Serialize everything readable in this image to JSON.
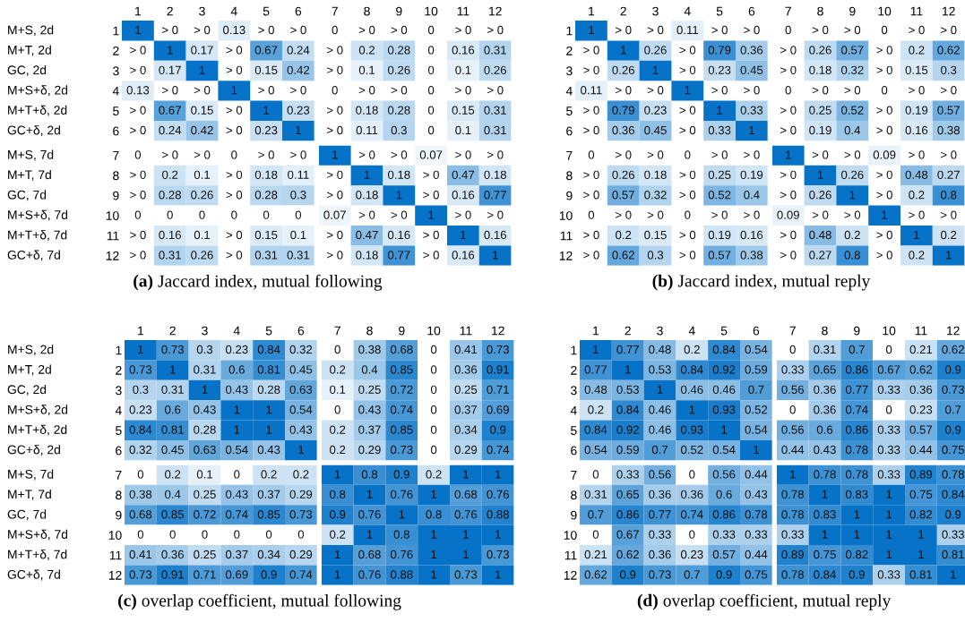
{
  "chart_data": [
    {
      "type": "heatmap",
      "data_labels": true,
      "title": "(a) Jaccard index, mutual following",
      "categories": [
        "1",
        "2",
        "3",
        "4",
        "5",
        "6"
      ],
      "y_categories": [
        "1",
        "2",
        "3",
        "4",
        "5",
        "6"
      ],
      "y2_categories": [
        "M+S, 2d",
        "M+T, 2d",
        "GC, 2d",
        "M+S+δ, 2d",
        "M+T+δ, 2d",
        "GC+δ, 2d"
      ],
      "cells": [
        [
          1,
          null,
          null,
          0.13,
          null,
          null
        ],
        [
          null,
          1,
          0.17,
          null,
          0.67,
          0.24
        ],
        [
          null,
          0.17,
          1,
          null,
          0.15,
          0.42
        ],
        [
          0.13,
          null,
          null,
          1,
          null,
          null
        ],
        [
          null,
          0.67,
          0.15,
          null,
          1,
          0.23
        ],
        [
          null,
          0.24,
          0.42,
          null,
          0.23,
          1
        ]
      ],
      "cell_labels": [
        [
          "1",
          "> 0",
          "> 0",
          "0.13",
          "> 0",
          "> 0"
        ],
        [
          "> 0",
          "1",
          "0.17",
          "> 0",
          "0.67",
          "0.24"
        ],
        [
          "> 0",
          "0.17",
          "1",
          "> 0",
          "0.15",
          "0.42"
        ],
        [
          "0.13",
          "> 0",
          "> 0",
          "1",
          "> 0",
          "> 0"
        ],
        [
          "> 0",
          "0.67",
          "0.15",
          "> 0",
          "1",
          "0.23"
        ],
        [
          "> 0",
          "0.24",
          "0.42",
          "> 0",
          "0.23",
          "1"
        ]
      ]
    },
    {
      "type": "heatmap",
      "data_labels": true,
      "categories": [
        "7",
        "8",
        "9",
        "10",
        "11",
        "12"
      ],
      "y_categories": [
        "1",
        "2",
        "3",
        "4",
        "5",
        "6"
      ],
      "tick_labels": "x",
      "cells": [
        [
          0,
          null,
          null,
          0,
          null,
          null
        ],
        [
          null,
          0.2,
          0.28,
          0,
          0.16,
          0.31
        ],
        [
          null,
          0.1,
          0.26,
          0,
          0.1,
          0.26
        ],
        [
          0,
          null,
          null,
          0,
          null,
          null
        ],
        [
          null,
          0.18,
          0.28,
          0,
          0.15,
          0.31
        ],
        [
          null,
          0.11,
          0.3,
          0,
          0.1,
          0.31
        ]
      ],
      "cell_labels": [
        [
          "0",
          "> 0",
          "> 0",
          "0",
          "> 0",
          "> 0"
        ],
        [
          "> 0",
          "0.2",
          "0.28",
          "0",
          "0.16",
          "0.31"
        ],
        [
          "> 0",
          "0.1",
          "0.26",
          "0",
          "0.1",
          "0.26"
        ],
        [
          "0",
          "> 0",
          "> 0",
          "0",
          "> 0",
          "> 0"
        ],
        [
          "> 0",
          "0.18",
          "0.28",
          "0",
          "0.15",
          "0.31"
        ],
        [
          "> 0",
          "0.11",
          "0.3",
          "0",
          "0.1",
          "0.31"
        ]
      ]
    },
    {
      "type": "heatmap",
      "data_labels": true,
      "categories": [
        "1",
        "2",
        "3",
        "4",
        "5",
        "6"
      ],
      "y_categories": [
        "7",
        "8",
        "9",
        "10",
        "11",
        "12"
      ],
      "y2_categories": [
        "M+S, 7d",
        "M+T, 7d",
        "GC, 7d",
        "M+S+δ, 7d",
        "M+T+δ, 7d",
        "GC+δ, 7d"
      ],
      "tick_labels": "y",
      "cells": [
        [
          0,
          null,
          null,
          0,
          null,
          null
        ],
        [
          null,
          0.2,
          0.1,
          null,
          0.18,
          0.11
        ],
        [
          null,
          0.28,
          0.26,
          null,
          0.28,
          0.3
        ],
        [
          0,
          0,
          0,
          0,
          0,
          0
        ],
        [
          null,
          0.16,
          0.1,
          null,
          0.15,
          0.1
        ],
        [
          null,
          0.31,
          0.26,
          null,
          0.31,
          0.31
        ]
      ],
      "cell_labels": [
        [
          "0",
          "> 0",
          "> 0",
          "0",
          "> 0",
          "> 0"
        ],
        [
          "> 0",
          "0.2",
          "0.1",
          "> 0",
          "0.18",
          "0.11"
        ],
        [
          "> 0",
          "0.28",
          "0.26",
          "> 0",
          "0.28",
          "0.3"
        ],
        [
          "0",
          "0",
          "0",
          "0",
          "0",
          "0"
        ],
        [
          "> 0",
          "0.16",
          "0.1",
          "> 0",
          "0.15",
          "0.1"
        ],
        [
          "> 0",
          "0.31",
          "0.26",
          "> 0",
          "0.31",
          "0.31"
        ]
      ]
    },
    {
      "type": "heatmap",
      "data_labels": true,
      "categories": [
        "7",
        "8",
        "9",
        "10",
        "11",
        "12"
      ],
      "y_categories": [
        "7",
        "8",
        "9",
        "10",
        "11",
        "12"
      ],
      "tick_labels": false,
      "cells": [
        [
          1,
          null,
          null,
          0.07,
          null,
          null
        ],
        [
          null,
          1,
          0.18,
          null,
          0.47,
          0.18
        ],
        [
          null,
          0.18,
          1,
          null,
          0.16,
          0.77
        ],
        [
          0.07,
          null,
          null,
          1,
          null,
          null
        ],
        [
          null,
          0.47,
          0.16,
          null,
          1,
          0.16
        ],
        [
          null,
          0.18,
          0.77,
          null,
          0.16,
          1
        ]
      ],
      "cell_labels": [
        [
          "1",
          "> 0",
          "> 0",
          "0.07",
          "> 0",
          "> 0"
        ],
        [
          "> 0",
          "1",
          "0.18",
          "> 0",
          "0.47",
          "0.18"
        ],
        [
          "> 0",
          "0.18",
          "1",
          "> 0",
          "0.16",
          "0.77"
        ],
        [
          "0.07",
          "> 0",
          "> 0",
          "1",
          "> 0",
          "> 0"
        ],
        [
          "> 0",
          "0.47",
          "0.16",
          "> 0",
          "1",
          "0.16"
        ],
        [
          "> 0",
          "0.18",
          "0.77",
          "> 0",
          "0.16",
          "1"
        ]
      ]
    },
    {
      "type": "heatmap",
      "data_labels": true,
      "title": "(b) Jaccard index, mutual reply",
      "categories": [
        "1",
        "2",
        "3",
        "4",
        "5",
        "6"
      ],
      "y_categories": [
        "1",
        "2",
        "3",
        "4",
        "5",
        "6"
      ],
      "cells": [
        [
          1,
          null,
          null,
          0.11,
          null,
          null
        ],
        [
          null,
          1,
          0.26,
          null,
          0.79,
          0.36
        ],
        [
          null,
          0.26,
          1,
          null,
          0.23,
          0.45
        ],
        [
          0.11,
          null,
          null,
          1,
          null,
          null
        ],
        [
          null,
          0.79,
          0.23,
          null,
          1,
          0.33
        ],
        [
          null,
          0.36,
          0.45,
          null,
          0.33,
          1
        ]
      ],
      "cell_labels": [
        [
          "1",
          "> 0",
          "> 0",
          "0.11",
          "> 0",
          "> 0"
        ],
        [
          "> 0",
          "1",
          "0.26",
          "> 0",
          "0.79",
          "0.36"
        ],
        [
          "> 0",
          "0.26",
          "1",
          "> 0",
          "0.23",
          "0.45"
        ],
        [
          "0.11",
          "> 0",
          "> 0",
          "1",
          "> 0",
          "> 0"
        ],
        [
          "> 0",
          "0.79",
          "0.23",
          "> 0",
          "1",
          "0.33"
        ],
        [
          "> 0",
          "0.36",
          "0.45",
          "> 0",
          "0.33",
          "1"
        ]
      ]
    },
    {
      "type": "heatmap",
      "data_labels": true,
      "categories": [
        "7",
        "8",
        "9",
        "10",
        "11",
        "12"
      ],
      "y_categories": [
        "1",
        "2",
        "3",
        "4",
        "5",
        "6"
      ],
      "tick_labels": "x",
      "cells": [
        [
          0,
          null,
          null,
          0,
          null,
          null
        ],
        [
          null,
          0.26,
          0.57,
          null,
          0.2,
          0.62
        ],
        [
          null,
          0.18,
          0.32,
          null,
          0.15,
          0.3
        ],
        [
          0,
          null,
          null,
          0,
          null,
          null
        ],
        [
          null,
          0.25,
          0.52,
          null,
          0.19,
          0.57
        ],
        [
          null,
          0.19,
          0.4,
          null,
          0.16,
          0.38
        ]
      ],
      "cell_labels": [
        [
          "0",
          "> 0",
          "> 0",
          "0",
          "> 0",
          "> 0"
        ],
        [
          "> 0",
          "0.26",
          "0.57",
          "> 0",
          "0.2",
          "0.62"
        ],
        [
          "> 0",
          "0.18",
          "0.32",
          "> 0",
          "0.15",
          "0.3"
        ],
        [
          "0",
          "> 0",
          "> 0",
          "0",
          "> 0",
          "> 0"
        ],
        [
          "> 0",
          "0.25",
          "0.52",
          "> 0",
          "0.19",
          "0.57"
        ],
        [
          "> 0",
          "0.19",
          "0.4",
          "> 0",
          "0.16",
          "0.38"
        ]
      ]
    },
    {
      "type": "heatmap",
      "data_labels": true,
      "categories": [
        "1",
        "2",
        "3",
        "4",
        "5",
        "6"
      ],
      "y_categories": [
        "7",
        "8",
        "9",
        "10",
        "11",
        "12"
      ],
      "tick_labels": "y",
      "cells": [
        [
          0,
          null,
          null,
          0,
          null,
          null
        ],
        [
          null,
          0.26,
          0.18,
          null,
          0.25,
          0.19
        ],
        [
          null,
          0.57,
          0.32,
          null,
          0.52,
          0.4
        ],
        [
          0,
          null,
          null,
          0,
          null,
          null
        ],
        [
          null,
          0.2,
          0.15,
          null,
          0.19,
          0.16
        ],
        [
          null,
          0.62,
          0.3,
          null,
          0.57,
          0.38
        ]
      ],
      "cell_labels": [
        [
          "0",
          "> 0",
          "> 0",
          "0",
          "> 0",
          "> 0"
        ],
        [
          "> 0",
          "0.26",
          "0.18",
          "> 0",
          "0.25",
          "0.19"
        ],
        [
          "> 0",
          "0.57",
          "0.32",
          "> 0",
          "0.52",
          "0.4"
        ],
        [
          "0",
          "> 0",
          "> 0",
          "0",
          "> 0",
          "> 0"
        ],
        [
          "> 0",
          "0.2",
          "0.15",
          "> 0",
          "0.19",
          "0.16"
        ],
        [
          "> 0",
          "0.62",
          "0.3",
          "> 0",
          "0.57",
          "0.38"
        ]
      ]
    },
    {
      "type": "heatmap",
      "data_labels": true,
      "categories": [
        "7",
        "8",
        "9",
        "10",
        "11",
        "12"
      ],
      "y_categories": [
        "7",
        "8",
        "9",
        "10",
        "11",
        "12"
      ],
      "tick_labels": false,
      "cells": [
        [
          1,
          null,
          null,
          0.09,
          null,
          null
        ],
        [
          null,
          1,
          0.26,
          null,
          0.48,
          0.27
        ],
        [
          null,
          0.26,
          1,
          null,
          0.2,
          0.8
        ],
        [
          0.09,
          null,
          null,
          1,
          null,
          null
        ],
        [
          null,
          0.48,
          0.2,
          null,
          1,
          0.2
        ],
        [
          null,
          0.27,
          0.8,
          null,
          0.2,
          1
        ]
      ],
      "cell_labels": [
        [
          "1",
          "> 0",
          "> 0",
          "0.09",
          "> 0",
          "> 0"
        ],
        [
          "> 0",
          "1",
          "0.26",
          "> 0",
          "0.48",
          "0.27"
        ],
        [
          "> 0",
          "0.26",
          "1",
          "> 0",
          "0.2",
          "0.8"
        ],
        [
          "0.09",
          "> 0",
          "> 0",
          "1",
          "> 0",
          "> 0"
        ],
        [
          "> 0",
          "0.48",
          "0.2",
          "> 0",
          "1",
          "0.2"
        ],
        [
          "> 0",
          "0.27",
          "0.8",
          "> 0",
          "0.2",
          "1"
        ]
      ]
    },
    {
      "type": "heatmap",
      "data_labels": true,
      "title": "(c) overlap coefficient, mutual following",
      "categories": [
        "1",
        "2",
        "3",
        "4",
        "5",
        "6"
      ],
      "y_categories": [
        "1",
        "2",
        "3",
        "4",
        "5",
        "6"
      ],
      "y2_categories": [
        "M+S, 2d",
        "M+T, 2d",
        "GC, 2d",
        "M+S+δ, 2d",
        "M+T+δ, 2d",
        "GC+δ, 2d"
      ],
      "cells": [
        [
          1,
          0.73,
          0.3,
          0.23,
          0.84,
          0.32
        ],
        [
          0.73,
          1,
          0.31,
          0.6,
          0.81,
          0.45
        ],
        [
          0.3,
          0.31,
          1,
          0.43,
          0.28,
          0.63
        ],
        [
          0.23,
          0.6,
          0.43,
          1,
          1,
          0.54
        ],
        [
          0.84,
          0.81,
          0.28,
          1,
          1,
          0.43
        ],
        [
          0.32,
          0.45,
          0.63,
          0.54,
          0.43,
          1
        ]
      ]
    },
    {
      "type": "heatmap",
      "data_labels": true,
      "categories": [
        "7",
        "8",
        "9",
        "10",
        "11",
        "12"
      ],
      "y_categories": [
        "1",
        "2",
        "3",
        "4",
        "5",
        "6"
      ],
      "tick_labels": "x",
      "cells": [
        [
          0,
          0.38,
          0.68,
          0,
          0.41,
          0.73
        ],
        [
          0.2,
          0.4,
          0.85,
          0,
          0.36,
          0.91
        ],
        [
          0.1,
          0.25,
          0.72,
          0,
          0.25,
          0.71
        ],
        [
          0,
          0.43,
          0.74,
          0,
          0.37,
          0.69
        ],
        [
          0.2,
          0.37,
          0.85,
          0,
          0.34,
          0.9
        ],
        [
          0.2,
          0.29,
          0.73,
          0,
          0.29,
          0.74
        ]
      ]
    },
    {
      "type": "heatmap",
      "data_labels": true,
      "categories": [
        "1",
        "2",
        "3",
        "4",
        "5",
        "6"
      ],
      "y_categories": [
        "7",
        "8",
        "9",
        "10",
        "11",
        "12"
      ],
      "y2_categories": [
        "M+S, 7d",
        "M+T, 7d",
        "GC, 7d",
        "M+S+δ, 7d",
        "M+T+δ, 7d",
        "GC+δ, 7d"
      ],
      "tick_labels": "y",
      "cells": [
        [
          0,
          0.2,
          0.1,
          0,
          0.2,
          0.2
        ],
        [
          0.38,
          0.4,
          0.25,
          0.43,
          0.37,
          0.29
        ],
        [
          0.68,
          0.85,
          0.72,
          0.74,
          0.85,
          0.73
        ],
        [
          0,
          0,
          0,
          0,
          0,
          0
        ],
        [
          0.41,
          0.36,
          0.25,
          0.37,
          0.34,
          0.29
        ],
        [
          0.73,
          0.91,
          0.71,
          0.69,
          0.9,
          0.74
        ]
      ]
    },
    {
      "type": "heatmap",
      "data_labels": true,
      "categories": [
        "7",
        "8",
        "9",
        "10",
        "11",
        "12"
      ],
      "y_categories": [
        "7",
        "8",
        "9",
        "10",
        "11",
        "12"
      ],
      "tick_labels": false,
      "cells": [
        [
          1,
          0.8,
          0.9,
          0.2,
          1,
          1
        ],
        [
          0.8,
          1,
          0.76,
          1,
          0.68,
          0.76
        ],
        [
          0.9,
          0.76,
          1,
          0.8,
          0.76,
          0.88
        ],
        [
          0.2,
          1,
          0.8,
          1,
          1,
          1
        ],
        [
          1,
          0.68,
          0.76,
          1,
          1,
          0.73
        ],
        [
          1,
          0.76,
          0.88,
          1,
          0.73,
          1
        ]
      ]
    },
    {
      "type": "heatmap",
      "data_labels": true,
      "title": "(d) overlap coefficient, mutual reply",
      "categories": [
        "1",
        "2",
        "3",
        "4",
        "5",
        "6"
      ],
      "y_categories": [
        "1",
        "2",
        "3",
        "4",
        "5",
        "6"
      ],
      "cells": [
        [
          1,
          0.77,
          0.48,
          0.2,
          0.84,
          0.54
        ],
        [
          0.77,
          1,
          0.53,
          0.84,
          0.92,
          0.59
        ],
        [
          0.48,
          0.53,
          1,
          0.46,
          0.46,
          0.7
        ],
        [
          0.2,
          0.84,
          0.46,
          1,
          0.93,
          0.52
        ],
        [
          0.84,
          0.92,
          0.46,
          0.93,
          1,
          0.54
        ],
        [
          0.54,
          0.59,
          0.7,
          0.52,
          0.54,
          1
        ]
      ]
    },
    {
      "type": "heatmap",
      "data_labels": true,
      "categories": [
        "7",
        "8",
        "9",
        "10",
        "11",
        "12"
      ],
      "y_categories": [
        "1",
        "2",
        "3",
        "4",
        "5",
        "6"
      ],
      "tick_labels": "x",
      "cells": [
        [
          0,
          0.31,
          0.7,
          0,
          0.21,
          0.62
        ],
        [
          0.33,
          0.65,
          0.86,
          0.67,
          0.62,
          0.9
        ],
        [
          0.56,
          0.36,
          0.77,
          0.33,
          0.36,
          0.73
        ],
        [
          0,
          0.36,
          0.74,
          0,
          0.23,
          0.7
        ],
        [
          0.56,
          0.6,
          0.86,
          0.33,
          0.57,
          0.9
        ],
        [
          0.44,
          0.43,
          0.78,
          0.33,
          0.44,
          0.75
        ]
      ]
    },
    {
      "type": "heatmap",
      "data_labels": true,
      "categories": [
        "1",
        "2",
        "3",
        "4",
        "5",
        "6"
      ],
      "y_categories": [
        "7",
        "8",
        "9",
        "10",
        "11",
        "12"
      ],
      "tick_labels": "y",
      "cells": [
        [
          0,
          0.33,
          0.56,
          0,
          0.56,
          0.44
        ],
        [
          0.31,
          0.65,
          0.36,
          0.36,
          0.6,
          0.43
        ],
        [
          0.7,
          0.86,
          0.77,
          0.74,
          0.86,
          0.78
        ],
        [
          0,
          0.67,
          0.33,
          0,
          0.33,
          0.33
        ],
        [
          0.21,
          0.62,
          0.36,
          0.23,
          0.57,
          0.44
        ],
        [
          0.62,
          0.9,
          0.73,
          0.7,
          0.9,
          0.75
        ]
      ]
    },
    {
      "type": "heatmap",
      "data_labels": true,
      "categories": [
        "7",
        "8",
        "9",
        "10",
        "11",
        "12"
      ],
      "y_categories": [
        "7",
        "8",
        "9",
        "10",
        "11",
        "12"
      ],
      "tick_labels": false,
      "cells": [
        [
          1,
          0.78,
          0.78,
          0.33,
          0.89,
          0.78
        ],
        [
          0.78,
          1,
          0.83,
          1,
          0.75,
          0.84
        ],
        [
          0.78,
          0.83,
          1,
          1,
          0.82,
          0.9
        ],
        [
          0.33,
          1,
          1,
          1,
          1,
          0.33
        ],
        [
          0.89,
          0.75,
          0.82,
          1,
          1,
          0.81
        ],
        [
          0.78,
          0.84,
          0.9,
          0.33,
          0.81,
          1
        ]
      ]
    }
  ]
}
